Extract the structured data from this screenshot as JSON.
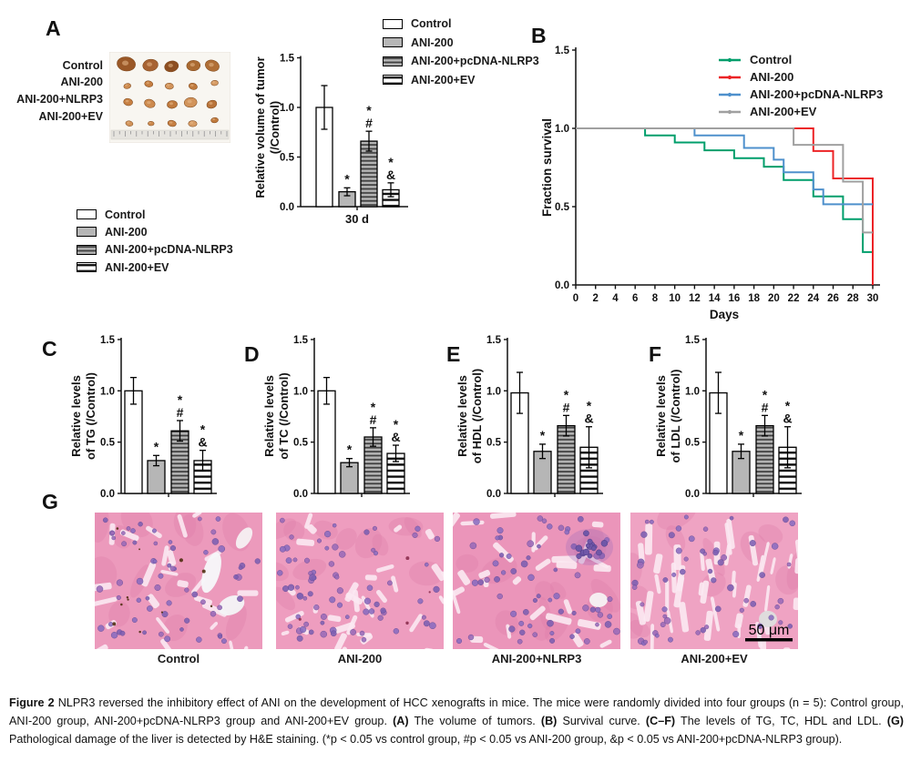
{
  "figure": {
    "panel_labels": {
      "A": "A",
      "B": "B",
      "C": "C",
      "D": "D",
      "E": "E",
      "F": "F",
      "G": "G"
    }
  },
  "colors": {
    "control_line": "#009e6b",
    "ani200_line": "#ec2326",
    "nlrp3_line": "#4e90cc",
    "ev_line": "#a0a0a0",
    "bar_gray": "#b6b6b6",
    "bar_stripe_dark": "#3f3f3f",
    "axis": "#1a1a1a"
  },
  "panelA": {
    "photo_row_labels": [
      "Control",
      "ANI-200",
      "ANI-200+NLRP3",
      "ANI-200+EV"
    ],
    "legend_top": [
      "Control",
      "ANI-200",
      "ANI-200+pcDNA-NLRP3",
      "ANI-200+EV"
    ],
    "legend_bottom": [
      "Control",
      "ANI-200",
      "ANI-200+pcDNA-NLRP3",
      "ANI-200+EV"
    ],
    "legend_styles": [
      "white",
      "gray",
      "gray-hstripe",
      "white-hstripe"
    ]
  },
  "panelB": {
    "legend": [
      {
        "label": "Control",
        "color": "#009e6b"
      },
      {
        "label": "ANI-200",
        "color": "#ec2326"
      },
      {
        "label": "ANI-200+pcDNA-NLRP3",
        "color": "#4e90cc"
      },
      {
        "label": "ANI-200+EV",
        "color": "#a0a0a0"
      }
    ]
  },
  "panelG": {
    "image_labels": [
      "Control",
      "ANI-200",
      "ANI-200+NLRP3",
      "ANI-200+EV"
    ],
    "scale_bar": "50 μm"
  },
  "caption": {
    "segments": [
      {
        "text": "Figure 2",
        "bold": true
      },
      {
        "text": " NLPR3 reversed the inhibitory effect of ANI on the development of HCC xenografts in mice. The mice were randomly divided into four groups (n = 5): Control group, ANI-200 group, ANI-200+pcDNA-NLRP3 group and ANI-200+EV group. ",
        "bold": false
      },
      {
        "text": "(A)",
        "bold": true
      },
      {
        "text": " The volume of tumors. ",
        "bold": false
      },
      {
        "text": "(B)",
        "bold": true
      },
      {
        "text": " Survival curve. ",
        "bold": false
      },
      {
        "text": "(C–F)",
        "bold": true
      },
      {
        "text": " The levels of TG, TC, HDL and LDL. ",
        "bold": false
      },
      {
        "text": "(G)",
        "bold": true
      },
      {
        "text": " Pathological damage of the liver is detected by H&E staining. (*p < 0.05 vs control group, #p < 0.05 vs ANI-200 group, &p < 0.05 vs ANI-200+pcDNA-NLRP3 group).",
        "bold": false
      }
    ]
  },
  "chart_data": [
    {
      "id": "A-tumor-volume",
      "panel": "A",
      "type": "bar",
      "ylabel": [
        "Relative volume of tumor",
        "(/Control)"
      ],
      "categories": [
        "Control",
        "ANI-200",
        "ANI-200+pcDNA-NLRP3",
        "ANI-200+EV"
      ],
      "styles": [
        "white",
        "gray",
        "gray-hstripe",
        "white-hstripe"
      ],
      "values": [
        1.0,
        0.15,
        0.66,
        0.17
      ],
      "errors": [
        0.22,
        0.04,
        0.1,
        0.07
      ],
      "annotations": [
        [],
        [
          "*"
        ],
        [
          "*",
          "#"
        ],
        [
          "*",
          "&"
        ]
      ],
      "ylim": [
        0,
        1.5
      ],
      "yticks": [
        0.0,
        0.5,
        1.0,
        1.5
      ],
      "ytick_labels": [
        "0.0",
        "0.5",
        "1.0",
        "1.5"
      ],
      "xtick_label": "30 d"
    },
    {
      "id": "B-survival",
      "panel": "B",
      "type": "line",
      "subtype": "survival-step",
      "title": "",
      "xlabel": "Days",
      "ylabel": "Fraction survival",
      "xlim": [
        0,
        30
      ],
      "ylim": [
        0,
        1.5
      ],
      "xticks": [
        0,
        2,
        4,
        6,
        8,
        10,
        12,
        14,
        16,
        18,
        20,
        22,
        24,
        26,
        28,
        30
      ],
      "yticks": [
        0.0,
        0.5,
        1.0,
        1.5
      ],
      "ytick_labels": [
        "0.0",
        "0.5",
        "1.0",
        "1.5"
      ],
      "legend_position": "top-right",
      "grid": false,
      "series": [
        {
          "name": "Control",
          "color": "#009e6b",
          "points": [
            [
              0,
              1.0
            ],
            [
              7,
              1.0
            ],
            [
              7,
              0.955
            ],
            [
              10,
              0.955
            ],
            [
              10,
              0.91
            ],
            [
              13,
              0.91
            ],
            [
              13,
              0.86
            ],
            [
              16,
              0.86
            ],
            [
              16,
              0.81
            ],
            [
              19,
              0.81
            ],
            [
              19,
              0.755
            ],
            [
              21,
              0.755
            ],
            [
              21,
              0.67
            ],
            [
              24,
              0.67
            ],
            [
              24,
              0.565
            ],
            [
              27,
              0.565
            ],
            [
              27,
              0.42
            ],
            [
              29,
              0.42
            ],
            [
              29,
              0.21
            ],
            [
              30,
              0.21
            ]
          ]
        },
        {
          "name": "ANI-200",
          "color": "#ec2326",
          "points": [
            [
              0,
              1.0
            ],
            [
              24,
              1.0
            ],
            [
              24,
              0.855
            ],
            [
              26,
              0.855
            ],
            [
              26,
              0.68
            ],
            [
              30,
              0.68
            ],
            [
              30,
              0.0
            ]
          ]
        },
        {
          "name": "ANI-200+pcDNA-NLRP3",
          "color": "#4e90cc",
          "points": [
            [
              0,
              1.0
            ],
            [
              12,
              1.0
            ],
            [
              12,
              0.955
            ],
            [
              17,
              0.955
            ],
            [
              17,
              0.875
            ],
            [
              20,
              0.875
            ],
            [
              20,
              0.8
            ],
            [
              21,
              0.8
            ],
            [
              21,
              0.72
            ],
            [
              24,
              0.72
            ],
            [
              24,
              0.61
            ],
            [
              25,
              0.61
            ],
            [
              25,
              0.515
            ],
            [
              30,
              0.515
            ]
          ]
        },
        {
          "name": "ANI-200+EV",
          "color": "#a0a0a0",
          "points": [
            [
              0,
              1.0
            ],
            [
              22,
              1.0
            ],
            [
              22,
              0.895
            ],
            [
              27,
              0.895
            ],
            [
              27,
              0.66
            ],
            [
              29,
              0.66
            ],
            [
              29,
              0.335
            ],
            [
              30,
              0.335
            ]
          ]
        }
      ]
    },
    {
      "id": "C-TG",
      "panel": "C",
      "type": "bar",
      "ylabel": [
        "Relative levels",
        "of TG (/Control)"
      ],
      "categories": [
        "Control",
        "ANI-200",
        "ANI-200+pcDNA-NLRP3",
        "ANI-200+EV"
      ],
      "styles": [
        "white",
        "gray",
        "gray-hstripe",
        "white-hstripe"
      ],
      "values": [
        1.0,
        0.32,
        0.61,
        0.32
      ],
      "errors": [
        0.13,
        0.05,
        0.1,
        0.1
      ],
      "annotations": [
        [],
        [
          "*"
        ],
        [
          "*",
          "#"
        ],
        [
          "*",
          "&"
        ]
      ],
      "ylim": [
        0,
        1.5
      ],
      "yticks": [
        0.0,
        0.5,
        1.0,
        1.5
      ],
      "ytick_labels": [
        "0.0",
        "0.5",
        "1.0",
        "1.5"
      ],
      "xtick_label": ""
    },
    {
      "id": "D-TC",
      "panel": "D",
      "type": "bar",
      "ylabel": [
        "Relative levels",
        "of TC (/Control)"
      ],
      "categories": [
        "Control",
        "ANI-200",
        "ANI-200+pcDNA-NLRP3",
        "ANI-200+EV"
      ],
      "styles": [
        "white",
        "gray",
        "gray-hstripe",
        "white-hstripe"
      ],
      "values": [
        1.0,
        0.3,
        0.55,
        0.39
      ],
      "errors": [
        0.13,
        0.04,
        0.09,
        0.08
      ],
      "annotations": [
        [],
        [
          "*"
        ],
        [
          "*",
          "#"
        ],
        [
          "*",
          "&"
        ]
      ],
      "ylim": [
        0,
        1.5
      ],
      "yticks": [
        0.0,
        0.5,
        1.0,
        1.5
      ],
      "ytick_labels": [
        "0.0",
        "0.5",
        "1.0",
        "1.5"
      ],
      "xtick_label": ""
    },
    {
      "id": "E-HDL",
      "panel": "E",
      "type": "bar",
      "ylabel": [
        "Relative levels",
        "of HDL (/Control)"
      ],
      "categories": [
        "Control",
        "ANI-200",
        "ANI-200+pcDNA-NLRP3",
        "ANI-200+EV"
      ],
      "styles": [
        "white",
        "gray",
        "gray-hstripe",
        "white-hstripe"
      ],
      "values": [
        0.98,
        0.41,
        0.66,
        0.45
      ],
      "errors": [
        0.2,
        0.07,
        0.1,
        0.2
      ],
      "annotations": [
        [],
        [
          "*"
        ],
        [
          "*",
          "#"
        ],
        [
          "*",
          "&"
        ]
      ],
      "ylim": [
        0,
        1.5
      ],
      "yticks": [
        0.0,
        0.5,
        1.0,
        1.5
      ],
      "ytick_labels": [
        "0.0",
        "0.5",
        "1.0",
        "1.5"
      ],
      "xtick_label": ""
    },
    {
      "id": "F-LDL",
      "panel": "F",
      "type": "bar",
      "ylabel": [
        "Relative levels",
        "of LDL (/Control)"
      ],
      "categories": [
        "Control",
        "ANI-200",
        "ANI-200+pcDNA-NLRP3",
        "ANI-200+EV"
      ],
      "styles": [
        "white",
        "gray",
        "gray-hstripe",
        "white-hstripe"
      ],
      "values": [
        0.98,
        0.41,
        0.66,
        0.45
      ],
      "errors": [
        0.2,
        0.07,
        0.1,
        0.2
      ],
      "annotations": [
        [],
        [
          "*"
        ],
        [
          "*",
          "#"
        ],
        [
          "*",
          "&"
        ]
      ],
      "ylim": [
        0,
        1.5
      ],
      "yticks": [
        0.0,
        0.5,
        1.0,
        1.5
      ],
      "ytick_labels": [
        "0.0",
        "0.5",
        "1.0",
        "1.5"
      ],
      "xtick_label": ""
    }
  ]
}
